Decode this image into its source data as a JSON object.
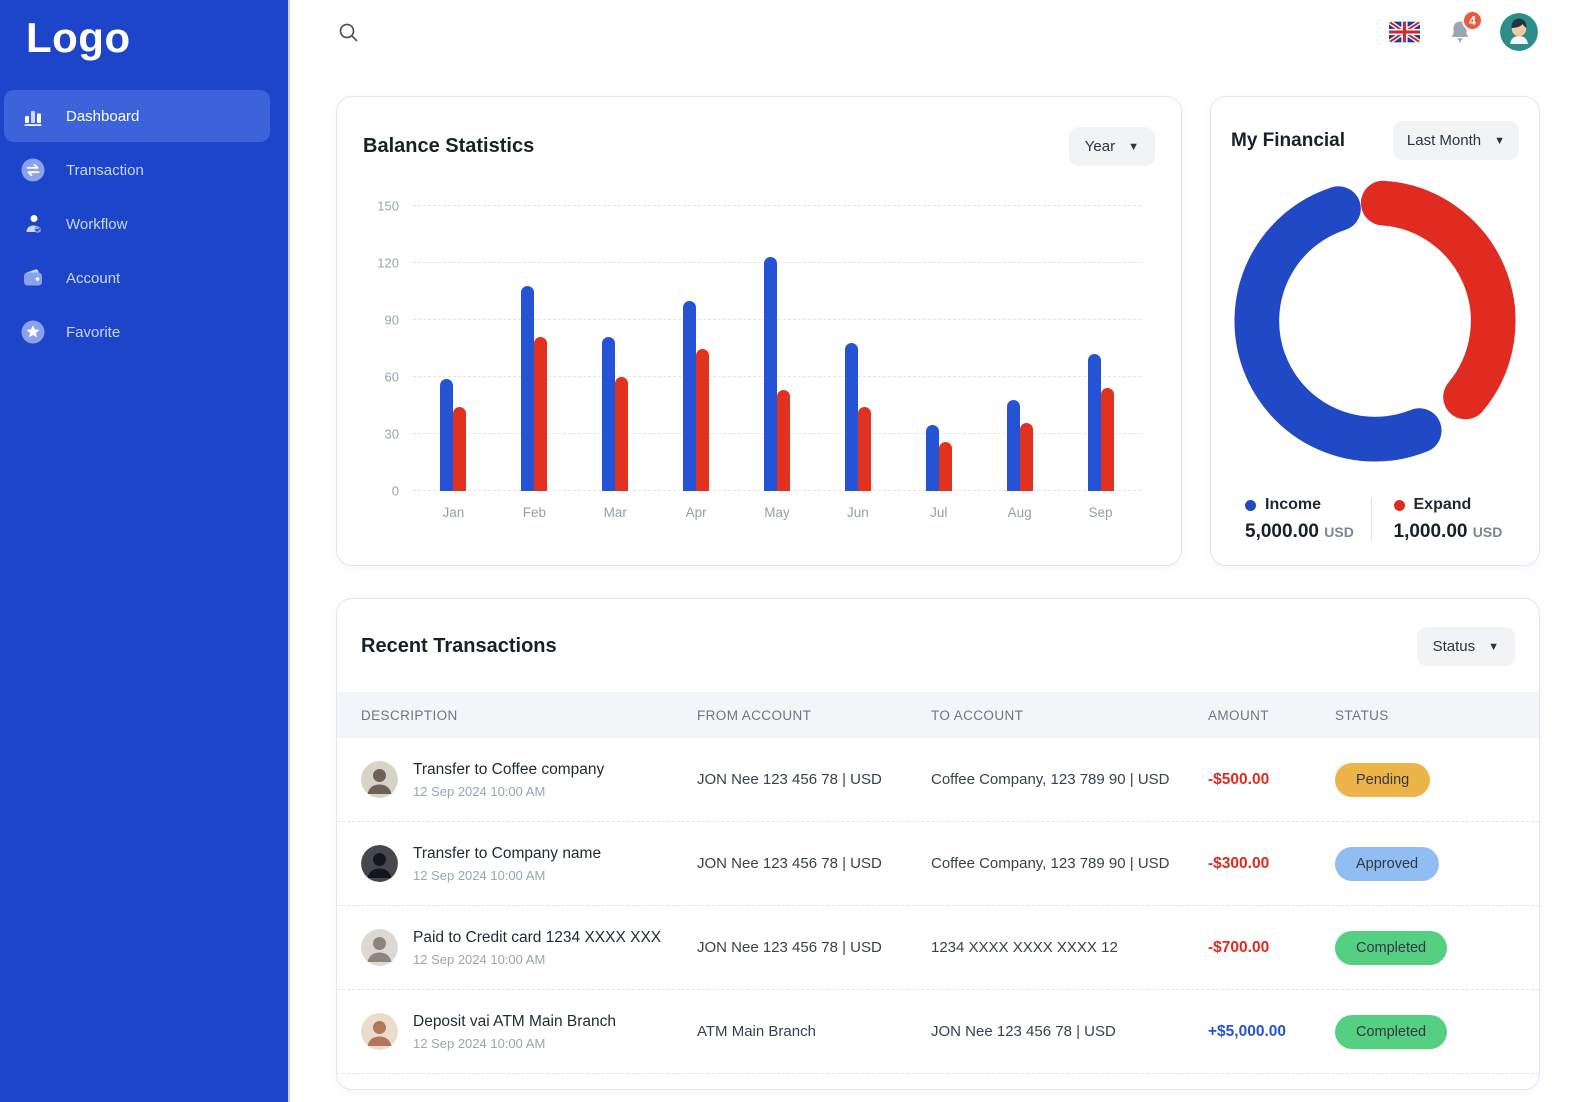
{
  "sidebar": {
    "logo": "Logo",
    "items": [
      {
        "label": "Dashboard",
        "icon": "dashboard-icon",
        "active": true
      },
      {
        "label": "Transaction",
        "icon": "transaction-icon",
        "active": false
      },
      {
        "label": "Workflow",
        "icon": "workflow-icon",
        "active": false
      },
      {
        "label": "Account",
        "icon": "account-icon",
        "active": false
      },
      {
        "label": "Favorite",
        "icon": "favorite-icon",
        "active": false
      }
    ]
  },
  "topbar": {
    "icons": [
      "search-icon",
      "uk-flag-icon",
      "bell-icon",
      "user-avatar"
    ],
    "notification_count": "4"
  },
  "balance_card": {
    "title": "Balance Statistics",
    "filter_label": "Year"
  },
  "financial_card": {
    "title": "My Financial",
    "filter_label": "Last Month",
    "legend": [
      {
        "label": "Income",
        "value": "5,000.00",
        "currency": "USD",
        "color": "#2149c6"
      },
      {
        "label": "Expand",
        "value": "1,000.00",
        "currency": "USD",
        "color": "#df2b20"
      }
    ]
  },
  "transactions_card": {
    "title": "Recent Transactions",
    "filter_label": "Status",
    "columns": [
      "DESCRIPTION",
      "FROM ACCOUNT",
      "TO ACCOUNT",
      "AMOUNT",
      "STATUS"
    ],
    "rows": [
      {
        "description": "Transfer to Coffee company",
        "datetime": "12 Sep 2024 10:00 AM",
        "from_account": "JON Nee 123 456 78 | USD",
        "to_account": "Coffee Company, 123 789 90 | USD",
        "amount": "-$500.00",
        "amount_type": "negative",
        "status": "Pending",
        "status_type": "pending"
      },
      {
        "description": "Transfer to Company name",
        "datetime": "12 Sep 2024 10:00 AM",
        "from_account": "JON Nee 123 456 78 | USD",
        "to_account": "Coffee Company, 123 789 90 | USD",
        "amount": "-$300.00",
        "amount_type": "negative",
        "status": "Approved",
        "status_type": "approved"
      },
      {
        "description": "Paid to Credit card 1234 XXXX XXX",
        "datetime": "12 Sep 2024 10:00 AM",
        "from_account": "JON Nee 123 456 78 | USD",
        "to_account": "1234 XXXX XXXX XXXX 12",
        "amount": "-$700.00",
        "amount_type": "negative",
        "status": "Completed",
        "status_type": "completed"
      },
      {
        "description": "Deposit vai ATM Main Branch",
        "datetime": "12 Sep 2024 10:00 AM",
        "from_account": "ATM Main Branch",
        "to_account": "JON Nee 123 456 78 | USD",
        "amount": "+$5,000.00",
        "amount_type": "positive",
        "status": "Completed",
        "status_type": "completed"
      }
    ]
  },
  "colors": {
    "sidebar_bg": "#1c45c9",
    "sidebar_active": "#3d63da",
    "bar_blue": "#2553d6",
    "bar_red": "#e0321f",
    "amount_negative": "#e02a20",
    "amount_positive": "#2553d6",
    "badge_pending": "#ecb449",
    "badge_approved": "#90bdf2",
    "badge_completed": "#55cf81",
    "notification_badge": "#f0583b"
  },
  "chart_data": [
    {
      "type": "bar",
      "title": "Balance Statistics",
      "filter": "Year",
      "categories": [
        "Jan",
        "Feb",
        "Mar",
        "Apr",
        "May",
        "Jun",
        "Jul",
        "Aug",
        "Sep"
      ],
      "series": [
        {
          "name": "Income",
          "color": "#2553d6",
          "values": [
            59,
            108,
            81,
            100,
            123,
            78,
            35,
            48,
            72
          ]
        },
        {
          "name": "Expand",
          "color": "#e0321f",
          "values": [
            44,
            81,
            60,
            75,
            53,
            44,
            26,
            36,
            54
          ]
        }
      ],
      "xlabel": "",
      "ylabel": "",
      "ylim": [
        0,
        150
      ],
      "yticks": [
        0,
        30,
        60,
        90,
        120,
        150
      ],
      "grid": "horizontal-dashed",
      "legend_position": "none"
    },
    {
      "type": "pie",
      "donut": true,
      "title": "My Financial",
      "filter": "Last Month",
      "slices": [
        {
          "label": "Income",
          "value_usd": 5000.0,
          "display": "5,000.00 USD",
          "color": "#2149c6",
          "arc_deg": [
            158,
            342
          ]
        },
        {
          "label": "Expand",
          "value_usd": 1000.0,
          "display": "1,000.00 USD",
          "color": "#df2b20",
          "arc_deg": [
            4,
            130
          ]
        }
      ],
      "legend_position": "bottom"
    }
  ]
}
